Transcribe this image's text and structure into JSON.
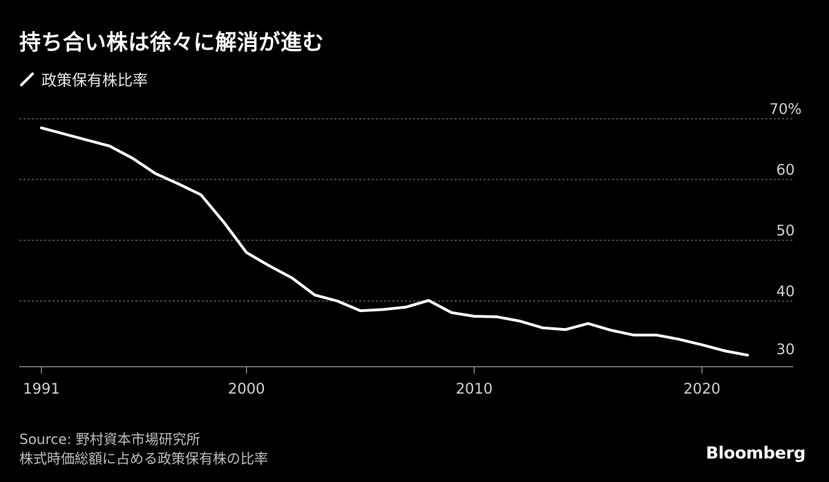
{
  "title": "持ち合い株は徐々に解消が進む",
  "legend": {
    "label": "政策保有株比率",
    "color": "#ffffff"
  },
  "source": {
    "line1": "Source: 野村資本市場研究所",
    "line2": "株式時価総額に占める政策保有株の比率"
  },
  "brand": "Bloomberg",
  "colors": {
    "background": "#000000",
    "line": "#ffffff",
    "grid": "#6e6e6e",
    "axis": "#8a8a8a"
  },
  "chart_data": {
    "type": "line",
    "title": "持ち合い株は徐々に解消が進む",
    "xlabel": "",
    "ylabel": "",
    "xlim": [
      1991,
      2024
    ],
    "ylim": [
      29.2,
      70
    ],
    "x_ticks": [
      1991,
      2000,
      2010,
      2020
    ],
    "x_tick_labels": [
      "1991",
      "2000",
      "2010",
      "2020"
    ],
    "y_ticks": [
      30,
      40,
      50,
      60,
      70
    ],
    "y_tick_labels": [
      "30",
      "40",
      "50",
      "60",
      "70%"
    ],
    "grid": "horizontal dotted",
    "y_axis_side": "right",
    "series": [
      {
        "name": "政策保有株比率",
        "x": [
          1991,
          1992,
          1993,
          1994,
          1995,
          1996,
          1997,
          1998,
          1999,
          2000,
          2001,
          2002,
          2003,
          2004,
          2005,
          2006,
          2007,
          2008,
          2009,
          2010,
          2011,
          2012,
          2013,
          2014,
          2015,
          2016,
          2017,
          2018,
          2019,
          2020,
          2021,
          2022
        ],
        "values": [
          68.5,
          67.5,
          66.5,
          65.5,
          63.5,
          61.0,
          59.3,
          57.5,
          53.0,
          48.0,
          45.8,
          43.8,
          41.0,
          40.0,
          38.4,
          38.6,
          39.0,
          40.1,
          38.1,
          37.5,
          37.4,
          36.7,
          35.6,
          35.3,
          36.3,
          35.2,
          34.4,
          34.4,
          33.7,
          32.8,
          31.8,
          31.1
        ]
      }
    ]
  }
}
